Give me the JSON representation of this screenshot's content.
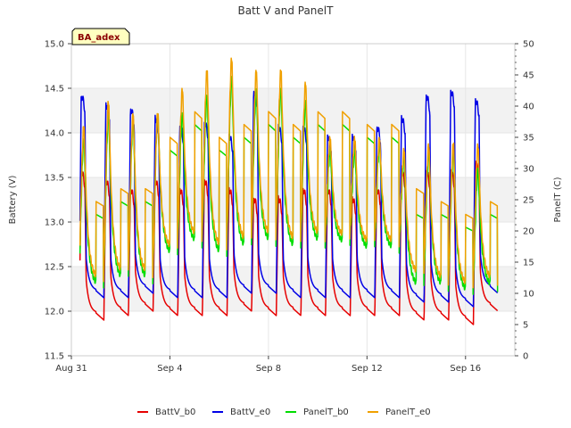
{
  "chart_data": {
    "type": "line",
    "title": "Batt V and PanelT",
    "badge": "BA_adex",
    "ylabel": "Battery (V)",
    "y2label": "PanelT (C)",
    "ylim": [
      11.5,
      15.0
    ],
    "y2lim": [
      0,
      50
    ],
    "yticks": [
      "11.5",
      "12.0",
      "12.5",
      "13.0",
      "13.5",
      "14.0",
      "14.5",
      "15.0"
    ],
    "y2ticks": [
      "0",
      "5",
      "10",
      "15",
      "20",
      "25",
      "30",
      "35",
      "40",
      "45",
      "50"
    ],
    "xlim": [
      0,
      18
    ],
    "xticks": [
      {
        "label": "Aug 31",
        "day": 0
      },
      {
        "label": "Sep 4",
        "day": 4
      },
      {
        "label": "Sep 8",
        "day": 8
      },
      {
        "label": "Sep 12",
        "day": 12
      },
      {
        "label": "Sep 16",
        "day": 16
      }
    ],
    "bands": [
      [
        12.0,
        12.5
      ],
      [
        13.0,
        13.5
      ],
      [
        14.0,
        14.5
      ]
    ],
    "day_range": [
      0.35,
      17.3
    ],
    "series": [
      {
        "name": "BattV_b0",
        "axis": "left",
        "color": "#e60000",
        "peaks": [
          13.6,
          13.5,
          13.4,
          13.5,
          13.4,
          13.5,
          13.4,
          13.3,
          13.3,
          13.4,
          13.4,
          13.3,
          13.4,
          13.6,
          13.6,
          13.6,
          13.7,
          13.6
        ],
        "mins": [
          11.9,
          11.9,
          11.95,
          12.0,
          11.95,
          11.95,
          11.95,
          12.0,
          11.95,
          11.95,
          11.95,
          11.95,
          11.95,
          11.95,
          11.9,
          11.9,
          11.85,
          12.0
        ]
      },
      {
        "name": "BattV_e0",
        "axis": "left",
        "color": "#0000e6",
        "peaks": [
          14.45,
          14.35,
          14.3,
          14.2,
          14.1,
          14.15,
          14.0,
          14.5,
          14.1,
          14.1,
          14.0,
          14.0,
          14.1,
          14.2,
          14.45,
          14.5,
          14.4,
          14.2
        ],
        "mins": [
          12.1,
          12.15,
          12.15,
          12.2,
          12.15,
          12.15,
          12.15,
          12.2,
          12.2,
          12.15,
          12.15,
          12.15,
          12.15,
          12.15,
          12.1,
          12.1,
          12.05,
          12.2
        ]
      },
      {
        "name": "PanelT_b0",
        "axis": "right",
        "color": "#00dd00",
        "peaks": [
          35,
          39,
          38,
          39,
          39,
          42,
          45,
          43,
          43,
          41,
          33,
          33,
          34,
          32,
          33,
          33,
          30,
          31
        ],
        "mins": [
          11,
          11,
          12,
          12,
          16,
          18,
          16,
          17,
          18,
          17,
          18,
          18,
          17,
          17,
          11,
          11,
          10,
          11
        ]
      },
      {
        "name": "PanelT_e0",
        "axis": "right",
        "color": "#f0a000",
        "peaks": [
          37,
          41,
          39,
          39,
          43,
          46,
          48,
          46,
          46,
          44,
          35,
          35,
          35,
          33,
          34,
          34,
          34,
          34
        ],
        "mins": [
          12,
          12,
          13,
          13,
          17,
          19,
          17,
          18,
          19,
          18,
          19,
          19,
          18,
          18,
          13,
          12,
          11,
          12
        ]
      }
    ]
  }
}
